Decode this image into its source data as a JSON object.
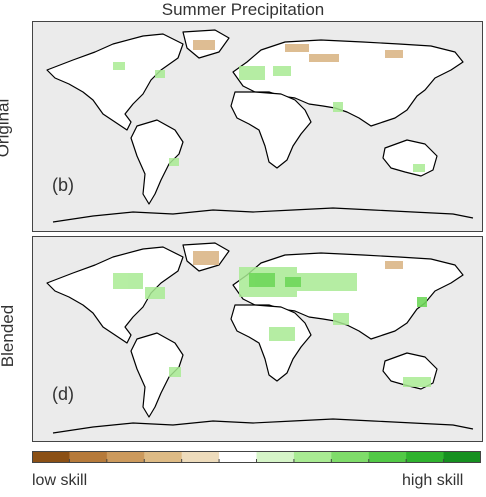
{
  "title": "Summer Precipitation",
  "panels": [
    {
      "row_label": "Original",
      "tag": "(b)"
    },
    {
      "row_label": "Blended",
      "tag": "(d)"
    }
  ],
  "colorbar": {
    "low_label": "low skill",
    "high_label": "high skill",
    "colors": [
      "#8b5015",
      "#b67a3a",
      "#cc9a5d",
      "#debb85",
      "#eedcbc",
      "#ffffff",
      "#d6f5c8",
      "#a9eb93",
      "#7fdc6a",
      "#52c946",
      "#2fb22e",
      "#169020"
    ]
  },
  "palette": {
    "ocean": "#ebebeb",
    "land": "#ffffff",
    "coast": "#000000",
    "dry": "#d8b280",
    "wet": "#a9eb93",
    "wet_strong": "#6fd75a"
  }
}
